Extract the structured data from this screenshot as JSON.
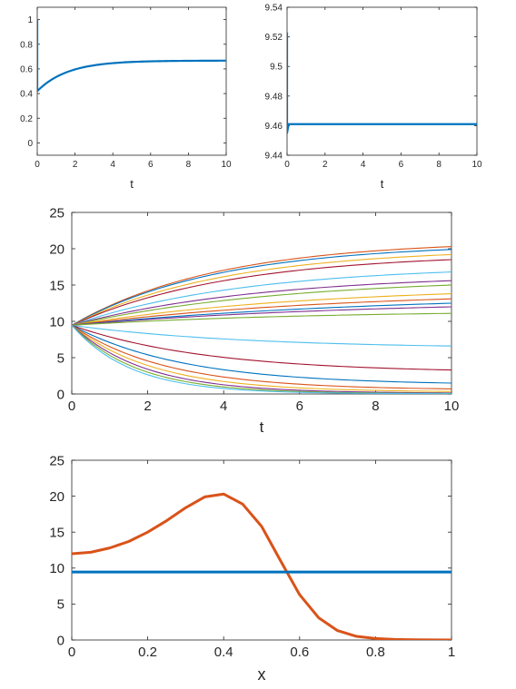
{
  "chart_data": [
    {
      "type": "line",
      "title": "",
      "xlabel": "t",
      "ylabel": "",
      "xlim": [
        0,
        10
      ],
      "ylim": [
        -0.1,
        1.1
      ],
      "xticks": [
        0,
        2,
        4,
        6,
        8,
        10
      ],
      "yticks": [
        0,
        0.2,
        0.4,
        0.6,
        0.8,
        1
      ],
      "ytick_labels": [
        "0",
        "0.2",
        "0.4",
        "0.6",
        "0.8",
        "1"
      ],
      "grid": false,
      "series": [
        {
          "color": "#0072BD",
          "x": [
            0,
            0,
            0.25,
            0.5,
            0.75,
            1,
            1.5,
            2,
            2.5,
            3,
            3.5,
            4,
            4.5,
            5,
            6,
            7,
            8,
            9,
            10
          ],
          "y": [
            1,
            0.42,
            0.46,
            0.492,
            0.518,
            0.54,
            0.573,
            0.597,
            0.614,
            0.627,
            0.636,
            0.643,
            0.648,
            0.652,
            0.658,
            0.662,
            0.664,
            0.666,
            0.667
          ]
        }
      ]
    },
    {
      "type": "line",
      "title": "",
      "xlabel": "t",
      "ylabel": "",
      "xlim": [
        0,
        10
      ],
      "ylim": [
        9.44,
        9.54
      ],
      "xticks": [
        0,
        2,
        4,
        6,
        8,
        10
      ],
      "yticks": [
        9.44,
        9.46,
        9.48,
        9.5,
        9.52,
        9.54
      ],
      "ytick_labels": [
        "9.44",
        "9.46",
        "9.48",
        "9.5",
        "9.52",
        "9.54"
      ],
      "grid": false,
      "series": [
        {
          "color": "#0072BD",
          "x": [
            0,
            0,
            0.08,
            10
          ],
          "y": [
            9.523,
            9.455,
            9.461,
            9.461
          ]
        }
      ]
    },
    {
      "type": "line",
      "title": "",
      "xlabel": "t",
      "ylabel": "",
      "xlim": [
        0,
        10
      ],
      "ylim": [
        0,
        25
      ],
      "xticks": [
        0,
        2,
        4,
        6,
        8,
        10
      ],
      "yticks": [
        0,
        5,
        10,
        15,
        20,
        25
      ],
      "ytick_labels": [
        "0",
        "5",
        "10",
        "15",
        "20",
        "25"
      ],
      "grid": false,
      "start_value": 9.46,
      "series": [
        {
          "color": "#D95319",
          "end": 20.3,
          "shape": 0.35
        },
        {
          "color": "#0072BD",
          "end": 19.9,
          "shape": 0.35
        },
        {
          "color": "#EDB120",
          "end": 19.2,
          "shape": 0.32
        },
        {
          "color": "#A2142F",
          "end": 18.5,
          "shape": 0.3
        },
        {
          "color": "#4DBEEE",
          "end": 16.8,
          "shape": 0.25
        },
        {
          "color": "#7E2F8E",
          "end": 15.6,
          "shape": 0.2
        },
        {
          "color": "#77AC30",
          "end": 15.0,
          "shape": 0.15
        },
        {
          "color": "#EDB120",
          "end": 13.8,
          "shape": 0.1
        },
        {
          "color": "#D95319",
          "end": 13.1,
          "shape": 0.05
        },
        {
          "color": "#0072BD",
          "end": 12.5,
          "shape": 0.0
        },
        {
          "color": "#7E2F8E",
          "end": 12.0,
          "shape": -0.05
        },
        {
          "color": "#77AC30",
          "end": 11.1,
          "shape": -0.1
        },
        {
          "color": "#4DBEEE",
          "end": 6.6,
          "shape": -0.2
        },
        {
          "color": "#A2142F",
          "end": 3.3,
          "shape": -0.3
        },
        {
          "color": "#0072BD",
          "end": 1.5,
          "shape": -0.4
        },
        {
          "color": "#D95319",
          "end": 0.7,
          "shape": -0.5
        },
        {
          "color": "#EDB120",
          "end": 0.35,
          "shape": -0.6
        },
        {
          "color": "#7E2F8E",
          "end": 0.15,
          "shape": -0.7
        },
        {
          "color": "#77AC30",
          "end": 0.08,
          "shape": -0.8
        },
        {
          "color": "#4DBEEE",
          "end": 0.04,
          "shape": -0.9
        }
      ]
    },
    {
      "type": "line",
      "title": "",
      "xlabel": "x",
      "ylabel": "",
      "xlim": [
        0,
        1
      ],
      "ylim": [
        0,
        25
      ],
      "xticks": [
        0,
        0.2,
        0.4,
        0.6,
        0.8,
        1
      ],
      "xtick_labels": [
        "0",
        "0.2",
        "0.4",
        "0.6",
        "0.8",
        "1"
      ],
      "yticks": [
        0,
        5,
        10,
        15,
        20,
        25
      ],
      "ytick_labels": [
        "0",
        "5",
        "10",
        "15",
        "20",
        "25"
      ],
      "grid": false,
      "series": [
        {
          "color": "#D95319",
          "x": [
            0,
            0.05,
            0.1,
            0.15,
            0.2,
            0.25,
            0.3,
            0.35,
            0.4,
            0.45,
            0.5,
            0.55,
            0.6,
            0.65,
            0.7,
            0.75,
            0.8,
            0.85,
            0.9,
            0.95,
            1.0
          ],
          "y": [
            12.0,
            12.2,
            12.8,
            13.7,
            15.0,
            16.6,
            18.4,
            19.9,
            20.3,
            18.9,
            15.8,
            11.0,
            6.3,
            3.1,
            1.3,
            0.5,
            0.2,
            0.08,
            0.03,
            0.01,
            0.0
          ]
        },
        {
          "color": "#0072BD",
          "x": [
            0,
            1
          ],
          "y": [
            9.46,
            9.46
          ]
        }
      ]
    }
  ]
}
